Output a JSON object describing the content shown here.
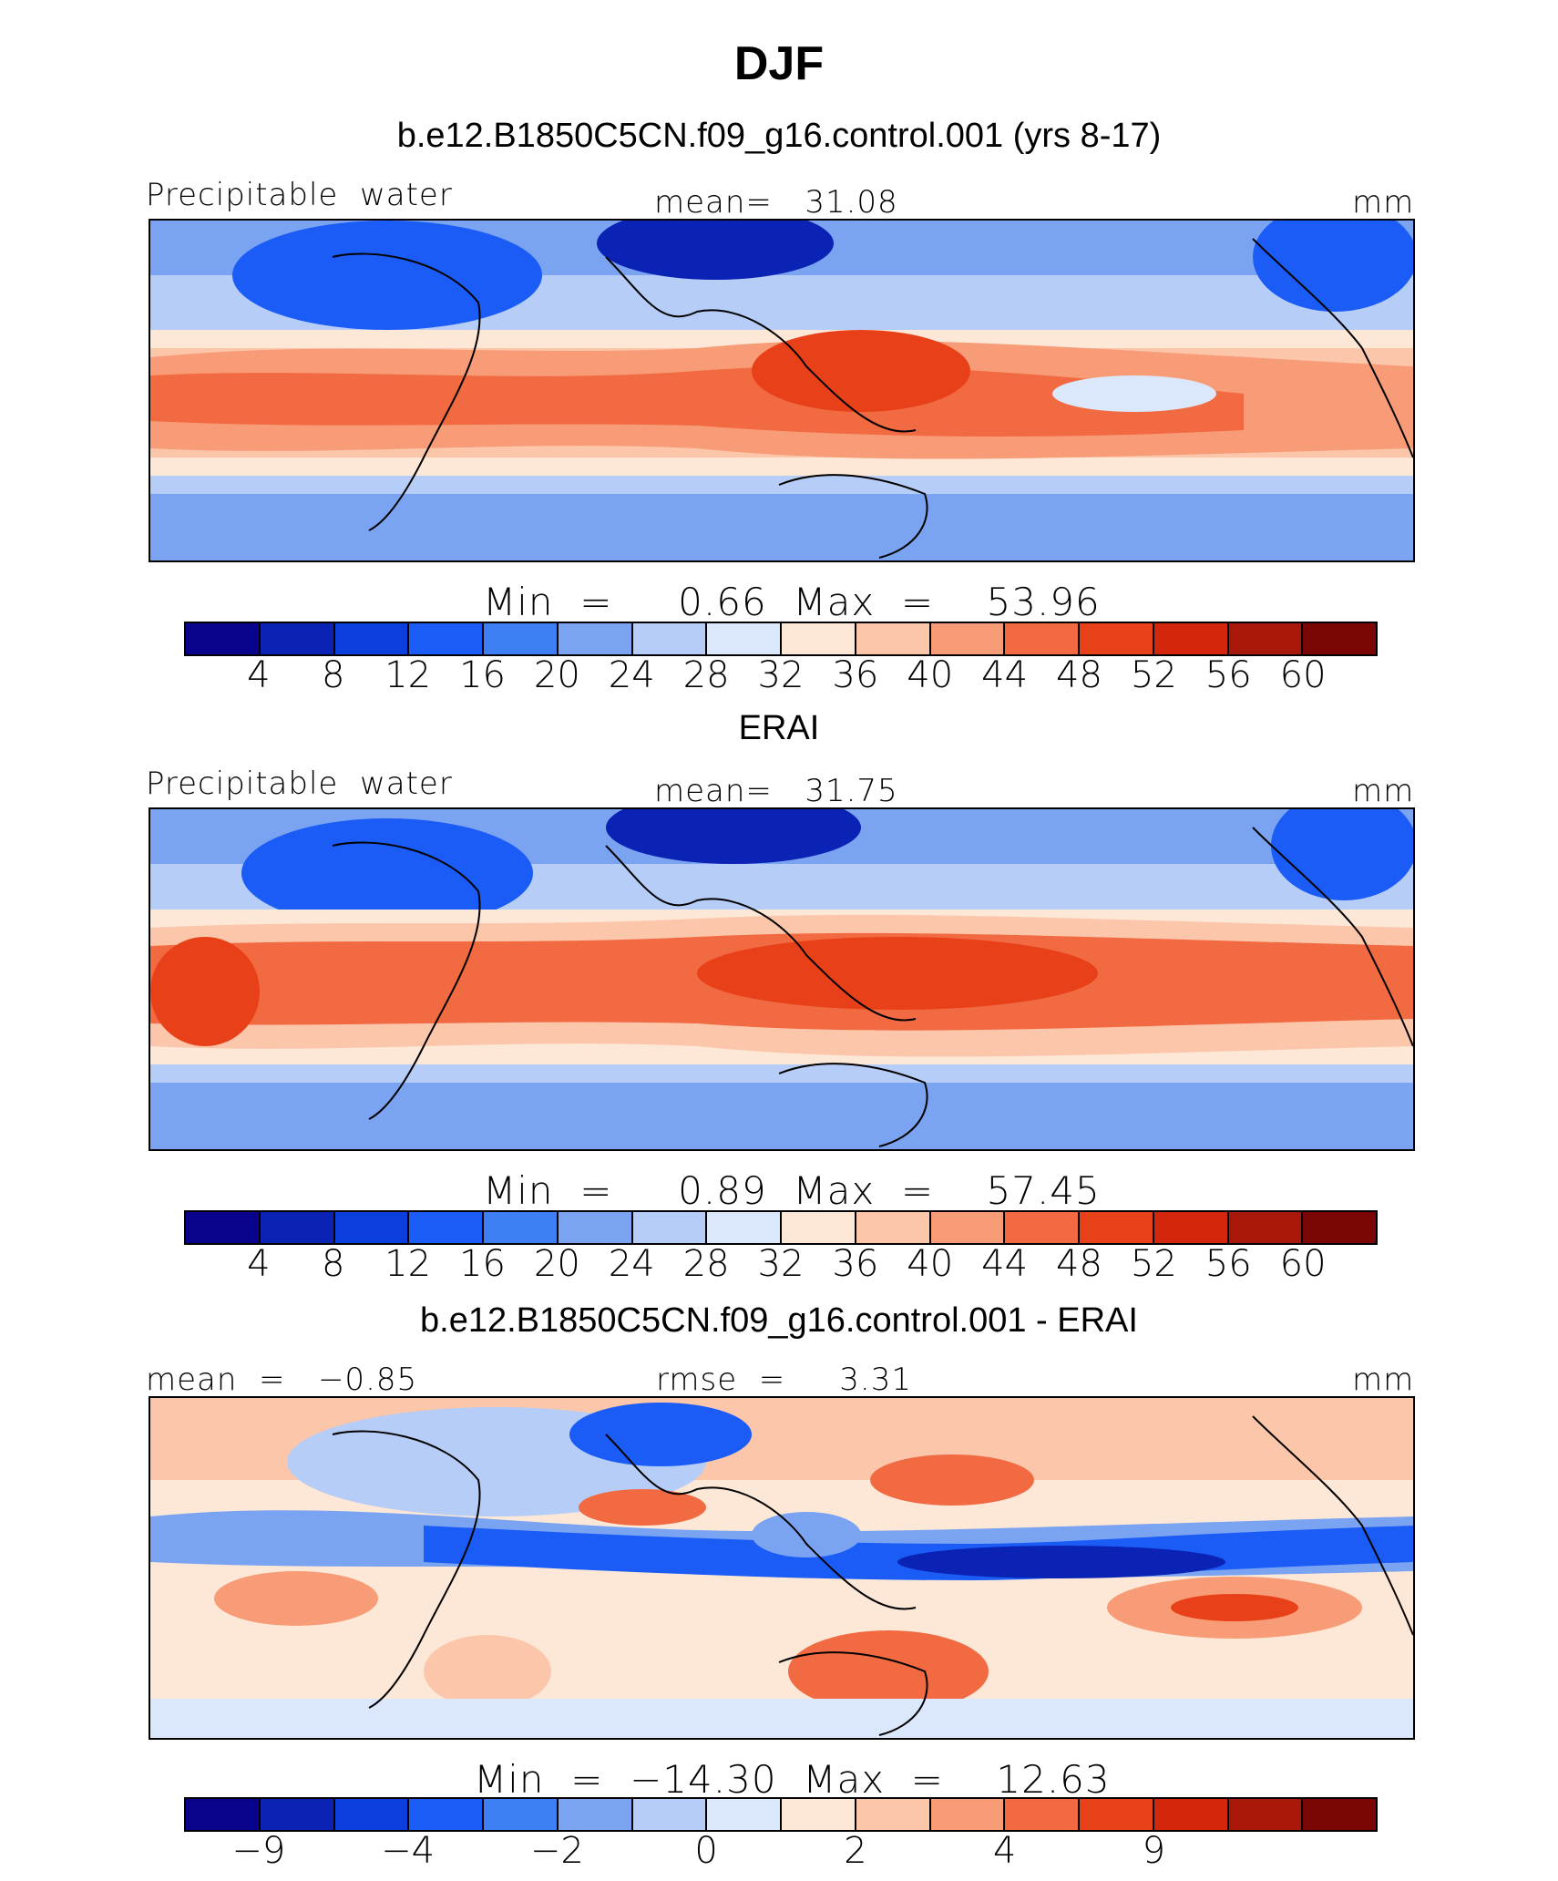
{
  "figure": {
    "title": "DJF",
    "colors": [
      "#08038a",
      "#0b23b5",
      "#0c3ddd",
      "#1a5cf5",
      "#3d7ef3",
      "#7aa4f1",
      "#b6cdf7",
      "#dbe7fb",
      "#fde8d8",
      "#fcc6ab",
      "#f79c76",
      "#f26a42",
      "#e84018",
      "#d4260c",
      "#a8170a",
      "#7a0706"
    ]
  },
  "panels": [
    {
      "header": "b.e12.B1850C5CN.f09_g16.control.001 (yrs 8-17)",
      "left_label": "Precipitable  water",
      "center_label": "mean=   31.08",
      "right_label": "mm",
      "stats": "Min  =     0.66  Max  =    53.96",
      "ticks": [
        "4",
        "8",
        "12",
        "16",
        "20",
        "24",
        "28",
        "32",
        "36",
        "40",
        "44",
        "48",
        "52",
        "56",
        "60"
      ]
    },
    {
      "header": "ERAI",
      "left_label": "Precipitable  water",
      "center_label": "mean=   31.75",
      "right_label": "mm",
      "stats": "Min  =     0.89  Max  =    57.45",
      "ticks": [
        "4",
        "8",
        "12",
        "16",
        "20",
        "24",
        "28",
        "32",
        "36",
        "40",
        "44",
        "48",
        "52",
        "56",
        "60"
      ]
    },
    {
      "header": "b.e12.B1850C5CN.f09_g16.control.001 - ERAI",
      "left_label": "mean  =   −0.85",
      "center_label": "rmse  =     3.31",
      "right_label": "mm",
      "stats": "Min  =  −14.30  Max  =    12.63",
      "ticks": [
        "−9",
        "−4",
        "−2",
        "0",
        "2",
        "4",
        "9"
      ]
    }
  ]
}
